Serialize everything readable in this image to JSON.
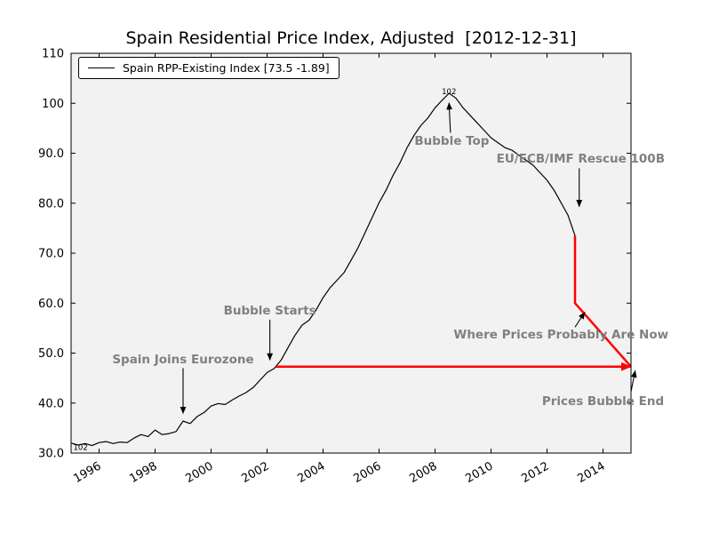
{
  "title": "Spain Residential Price Index, Adjusted  [2012-12-31]",
  "legend": {
    "label": "Spain RPP-Existing Index [73.5 -1.89]"
  },
  "colors": {
    "series": "#000000",
    "projection": "#ff0000",
    "annotation": "#808080",
    "plot_background": "#f2f2f2",
    "figure_background": "#ffffff",
    "frame": "#000000",
    "point_label": "#303030"
  },
  "chart_data": {
    "type": "line",
    "title": "Spain Residential Price Index, Adjusted  [2012-12-31]",
    "xlabel": "",
    "ylabel": "",
    "xlim": [
      1995,
      2015
    ],
    "ylim": [
      30,
      110
    ],
    "grid": false,
    "legend_position": "upper left",
    "xticks": {
      "values": [
        1996,
        1998,
        2000,
        2002,
        2004,
        2006,
        2008,
        2010,
        2012,
        2014
      ],
      "labels": [
        "1996",
        "1998",
        "2000",
        "2002",
        "2004",
        "2006",
        "2008",
        "2010",
        "2012",
        "2014"
      ],
      "rotation": -30
    },
    "yticks": {
      "values": [
        30,
        40,
        50,
        60,
        70,
        80,
        90,
        100,
        110
      ],
      "labels": [
        "30.0",
        "40.0",
        "50.0",
        "60.0",
        "70.0",
        "80.0",
        "90.0",
        "100",
        "110"
      ]
    },
    "series": [
      {
        "name": "Spain RPP-Existing Index [73.5 -1.89]",
        "color": "#000000",
        "width": 1.2,
        "x": [
          1995,
          1995.25,
          1995.5,
          1995.75,
          1996,
          1996.25,
          1996.5,
          1996.75,
          1997,
          1997.25,
          1997.5,
          1997.75,
          1998,
          1998.25,
          1998.5,
          1998.75,
          1999,
          1999.25,
          1999.5,
          1999.75,
          2000,
          2000.25,
          2000.5,
          2000.75,
          2001,
          2001.25,
          2001.5,
          2001.75,
          2002,
          2002.25,
          2002.5,
          2002.75,
          2003,
          2003.25,
          2003.5,
          2003.75,
          2004,
          2004.25,
          2004.5,
          2004.75,
          2005,
          2005.25,
          2005.5,
          2005.75,
          2006,
          2006.25,
          2006.5,
          2006.75,
          2007,
          2007.25,
          2007.5,
          2007.75,
          2008,
          2008.25,
          2008.5,
          2008.75,
          2009,
          2009.25,
          2009.5,
          2009.75,
          2010,
          2010.25,
          2010.5,
          2010.75,
          2011,
          2011.25,
          2011.5,
          2011.75,
          2012,
          2012.25,
          2012.5,
          2012.75,
          2013
        ],
        "y": [
          32.0,
          31.6,
          31.9,
          31.5,
          32.1,
          32.3,
          31.9,
          32.2,
          32.1,
          33.0,
          33.7,
          33.3,
          34.6,
          33.7,
          33.9,
          34.3,
          36.4,
          35.9,
          37.3,
          38.1,
          39.4,
          39.9,
          39.7,
          40.6,
          41.4,
          42.1,
          43.1,
          44.6,
          46.1,
          46.9,
          48.6,
          51.1,
          53.6,
          55.6,
          56.6,
          58.6,
          61.1,
          63.1,
          64.6,
          66.1,
          68.6,
          71.1,
          74.1,
          77.1,
          80.1,
          82.6,
          85.6,
          88.1,
          91.1,
          93.6,
          95.6,
          97.1,
          99.1,
          100.6,
          102.0,
          101.0,
          99.1,
          97.6,
          96.1,
          94.6,
          93.1,
          92.1,
          91.1,
          90.6,
          89.6,
          88.6,
          87.6,
          86.1,
          84.6,
          82.6,
          80.1,
          77.6,
          73.5
        ]
      }
    ],
    "overlay_lines": [
      {
        "name": "price-drop-projection",
        "color": "#ff0000",
        "width": 2.5,
        "points": [
          [
            2013,
            73.5
          ],
          [
            2013,
            60
          ],
          [
            2015,
            47.3
          ]
        ],
        "arrow_end": false
      },
      {
        "name": "pre-bubble-baseline",
        "color": "#ff0000",
        "width": 2.5,
        "points": [
          [
            2002.3,
            47.3
          ],
          [
            2015,
            47.3
          ]
        ],
        "arrow_end": true
      }
    ],
    "annotations": [
      {
        "label": "Spain Joins Eurozone",
        "text_x": 1999.0,
        "text_y": 48.6,
        "arrow": [
          [
            1999.0,
            47.0
          ],
          [
            1999.0,
            37.9
          ]
        ]
      },
      {
        "label": "Bubble Starts",
        "text_x": 2002.1,
        "text_y": 58.4,
        "arrow": [
          [
            2002.1,
            56.7
          ],
          [
            2002.1,
            48.6
          ]
        ]
      },
      {
        "label": "Bubble Top",
        "text_x": 2008.6,
        "text_y": 92.4,
        "arrow": [
          [
            2008.55,
            94.1
          ],
          [
            2008.5,
            100.1
          ]
        ]
      },
      {
        "label": "EU/ECB/IMF Rescue 100B",
        "text_x": 2013.2,
        "text_y": 88.8,
        "arrow": [
          [
            2013.15,
            87.0
          ],
          [
            2013.15,
            79.3
          ]
        ]
      },
      {
        "label": "Where Prices Probably Are Now",
        "text_x": 2012.5,
        "text_y": 53.6,
        "arrow": [
          [
            2013.0,
            55.2
          ],
          [
            2013.35,
            58.2
          ]
        ]
      },
      {
        "label": "Prices Bubble End",
        "text_x": 2014.0,
        "text_y": 40.3,
        "arrow": [
          [
            2015.0,
            42.3
          ],
          [
            2015.15,
            46.5
          ]
        ]
      }
    ],
    "point_labels": [
      {
        "text": "102",
        "x": 2008.5,
        "y": 101.8,
        "anchor": "middle"
      },
      {
        "text": "102",
        "x": 1995.08,
        "y": 30.6,
        "anchor": "start"
      }
    ]
  }
}
